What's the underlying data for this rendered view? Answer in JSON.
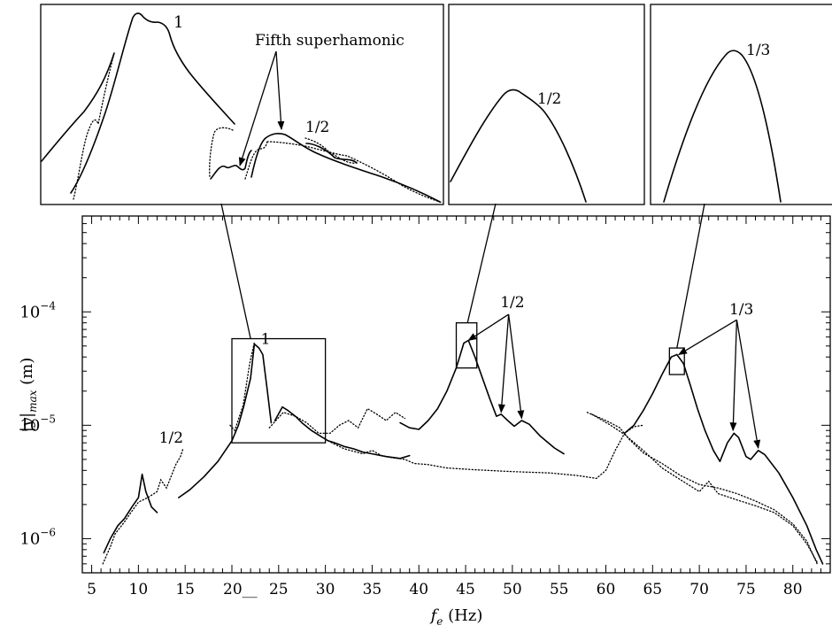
{
  "chart_data": {
    "type": "line",
    "title": "",
    "xlabel_main": "f",
    "xlabel_sub": "e",
    "xlabel_unit": " (Hz)",
    "ylabel_main": "|y|",
    "ylabel_sub": "max",
    "ylabel_unit": " (m)",
    "x_range": [
      4,
      84
    ],
    "y_scale": "log",
    "y_range": [
      5e-07,
      0.0007
    ],
    "x_ticks": [
      {
        "value": 5,
        "label": "5"
      },
      {
        "value": 10,
        "label": "10"
      },
      {
        "value": 15,
        "label": "15"
      },
      {
        "value": 20,
        "label": "20__"
      },
      {
        "value": 25,
        "label": "25"
      },
      {
        "value": 30,
        "label": "30"
      },
      {
        "value": 35,
        "label": "35"
      },
      {
        "value": 40,
        "label": "40"
      },
      {
        "value": 45,
        "label": "45"
      },
      {
        "value": 50,
        "label": "50"
      },
      {
        "value": 55,
        "label": "55"
      },
      {
        "value": 60,
        "label": "60"
      },
      {
        "value": 65,
        "label": "65"
      },
      {
        "value": 70,
        "label": "70"
      },
      {
        "value": 75,
        "label": "75"
      },
      {
        "value": 80,
        "label": "80"
      }
    ],
    "y_ticks": [
      {
        "value": 1e-06,
        "base": "10",
        "exp": "−6"
      },
      {
        "value": 1e-05,
        "base": "10",
        "exp": "−5"
      },
      {
        "value": 0.0001,
        "base": "10",
        "exp": "−4"
      }
    ],
    "series": [
      {
        "style": "solid",
        "segments": [
          [
            [
              6.3,
              7.5e-07
            ],
            [
              7.0,
              1e-06
            ],
            [
              7.8,
              1.3e-06
            ],
            [
              8.5,
              1.5e-06
            ],
            [
              9.3,
              1.9e-06
            ],
            [
              10.0,
              2.3e-06
            ],
            [
              10.4,
              3.7e-06
            ],
            [
              10.8,
              2.6e-06
            ],
            [
              11.4,
              1.9e-06
            ],
            [
              12.0,
              1.7e-06
            ]
          ],
          [
            [
              14.3,
              2.3e-06
            ],
            [
              15.5,
              2.7e-06
            ],
            [
              17.0,
              3.5e-06
            ],
            [
              18.5,
              4.8e-06
            ],
            [
              20.0,
              7.3e-06
            ],
            [
              20.7,
              1e-05
            ],
            [
              21.3,
              1.5e-05
            ],
            [
              22.0,
              2.6e-05
            ],
            [
              22.4,
              5.2e-05
            ],
            [
              22.9,
              4.8e-05
            ],
            [
              23.3,
              4.2e-05
            ],
            [
              23.8,
              2e-05
            ],
            [
              24.2,
              1.05e-05
            ]
          ],
          [
            [
              24.6,
              1.1e-05
            ],
            [
              25.4,
              1.45e-05
            ],
            [
              26.0,
              1.35e-05
            ],
            [
              26.8,
              1.2e-05
            ],
            [
              27.5,
              1.05e-05
            ],
            [
              28.5,
              9e-06
            ],
            [
              29.5,
              8e-06
            ],
            [
              30.3,
              7.3e-06
            ],
            [
              31.0,
              7e-06
            ],
            [
              32.0,
              6.5e-06
            ],
            [
              33.0,
              6.2e-06
            ],
            [
              34.0,
              5.8e-06
            ],
            [
              35.0,
              5.6e-06
            ],
            [
              36.5,
              5.3e-06
            ],
            [
              38.0,
              5.1e-06
            ],
            [
              39.0,
              5.4e-06
            ]
          ],
          [
            [
              38.0,
              1.05e-05
            ],
            [
              39.0,
              9.5e-06
            ],
            [
              40.0,
              9.2e-06
            ],
            [
              41.0,
              1.1e-05
            ],
            [
              42.0,
              1.4e-05
            ],
            [
              43.0,
              2e-05
            ],
            [
              44.0,
              3.2e-05
            ],
            [
              44.8,
              5.3e-05
            ],
            [
              45.3,
              5.6e-05
            ],
            [
              46.0,
              4e-05
            ],
            [
              46.8,
              2.6e-05
            ],
            [
              47.6,
              1.7e-05
            ],
            [
              48.3,
              1.2e-05
            ],
            [
              48.8,
              1.25e-05
            ],
            [
              49.5,
              1.1e-05
            ],
            [
              50.2,
              9.8e-06
            ],
            [
              51.0,
              1.1e-05
            ],
            [
              51.8,
              1.02e-05
            ],
            [
              53.0,
              8e-06
            ],
            [
              54.5,
              6.3e-06
            ],
            [
              55.5,
              5.6e-06
            ]
          ],
          [
            [
              62.0,
              8.5e-06
            ],
            [
              63.0,
              1e-05
            ],
            [
              64.0,
              1.35e-05
            ],
            [
              65.0,
              1.9e-05
            ],
            [
              66.0,
              2.8e-05
            ],
            [
              67.0,
              4e-05
            ],
            [
              67.6,
              4.2e-05
            ],
            [
              68.3,
              3.5e-05
            ],
            [
              69.0,
              2.3e-05
            ],
            [
              69.8,
              1.4e-05
            ],
            [
              70.6,
              9e-06
            ],
            [
              71.5,
              6e-06
            ],
            [
              72.2,
              4.8e-06
            ],
            [
              73.0,
              7e-06
            ],
            [
              73.7,
              8.5e-06
            ],
            [
              74.2,
              7.8e-06
            ],
            [
              75.0,
              5.3e-06
            ],
            [
              75.5,
              5e-06
            ],
            [
              76.3,
              6e-06
            ],
            [
              77.0,
              5.5e-06
            ],
            [
              78.5,
              3.8e-06
            ],
            [
              80.0,
              2.3e-06
            ],
            [
              81.5,
              1.3e-06
            ],
            [
              82.5,
              8e-07
            ],
            [
              83.2,
              6e-07
            ]
          ]
        ]
      },
      {
        "style": "dotted",
        "segments": [
          [
            [
              6.2,
              6e-07
            ],
            [
              7.0,
              8.5e-07
            ],
            [
              7.5,
              1.1e-06
            ],
            [
              8.5,
              1.4e-06
            ],
            [
              9.2,
              1.7e-06
            ],
            [
              10.0,
              2.1e-06
            ],
            [
              11.0,
              2.3e-06
            ],
            [
              12.0,
              2.6e-06
            ],
            [
              12.4,
              3.3e-06
            ],
            [
              13.0,
              2.8e-06
            ],
            [
              14.0,
              4.5e-06
            ],
            [
              14.5,
              5.3e-06
            ],
            [
              14.8,
              6.3e-06
            ]
          ],
          [
            [
              19.8,
              1e-05
            ],
            [
              20.3,
              9e-06
            ],
            [
              21.2,
              1.5e-05
            ],
            [
              21.9,
              3.5e-05
            ],
            [
              22.4,
              5.4e-05
            ]
          ],
          [
            [
              24.0,
              9.5e-06
            ],
            [
              25.5,
              1.3e-05
            ],
            [
              26.8,
              1.2e-05
            ],
            [
              28.0,
              1.05e-05
            ],
            [
              29.3,
              8.5e-06
            ],
            [
              30.5,
              8.5e-06
            ],
            [
              31.5,
              1e-05
            ],
            [
              32.5,
              1.1e-05
            ],
            [
              33.5,
              9.5e-06
            ],
            [
              34.5,
              1.4e-05
            ],
            [
              35.5,
              1.25e-05
            ],
            [
              36.5,
              1.1e-05
            ],
            [
              37.5,
              1.3e-05
            ],
            [
              38.5,
              1.15e-05
            ]
          ],
          [
            [
              30.0,
              7.5e-06
            ],
            [
              31.0,
              6.8e-06
            ],
            [
              32.0,
              6.2e-06
            ],
            [
              34.0,
              5.6e-06
            ],
            [
              35.0,
              6e-06
            ],
            [
              36.0,
              5.4e-06
            ],
            [
              37.0,
              5.2e-06
            ],
            [
              38.5,
              5e-06
            ],
            [
              39.5,
              4.6e-06
            ],
            [
              41.0,
              4.5e-06
            ],
            [
              43.0,
              4.2e-06
            ],
            [
              46.0,
              4.05e-06
            ],
            [
              50.0,
              3.9e-06
            ],
            [
              54.0,
              3.8e-06
            ],
            [
              57.0,
              3.6e-06
            ],
            [
              59.0,
              3.4e-06
            ],
            [
              60.0,
              4e-06
            ],
            [
              61.0,
              6e-06
            ],
            [
              62.0,
              8.5e-06
            ],
            [
              63.0,
              9.7e-06
            ],
            [
              64.0,
              1e-05
            ]
          ],
          [
            [
              58.0,
              1.3e-05
            ],
            [
              59.5,
              1.15e-05
            ],
            [
              60.5,
              1.05e-05
            ],
            [
              61.5,
              9.5e-06
            ],
            [
              62.5,
              7.5e-06
            ],
            [
              64.0,
              5.7e-06
            ],
            [
              66.0,
              4.6e-06
            ],
            [
              68.0,
              3.6e-06
            ],
            [
              70.0,
              3e-06
            ],
            [
              72.0,
              2.8e-06
            ],
            [
              74.0,
              2.5e-06
            ],
            [
              76.0,
              2.15e-06
            ],
            [
              78.0,
              1.8e-06
            ],
            [
              80.0,
              1.35e-06
            ],
            [
              81.5,
              9.5e-07
            ],
            [
              82.6,
              6e-07
            ]
          ],
          [
            [
              58.5,
              1.25e-05
            ],
            [
              60.5,
              1e-05
            ],
            [
              62.0,
              8.3e-06
            ],
            [
              64.0,
              6e-06
            ],
            [
              66.0,
              4.2e-06
            ],
            [
              68.0,
              3.3e-06
            ],
            [
              70.0,
              2.6e-06
            ],
            [
              71.0,
              3.2e-06
            ],
            [
              72.0,
              2.5e-06
            ],
            [
              74.0,
              2.2e-06
            ],
            [
              76.0,
              1.95e-06
            ],
            [
              78.0,
              1.7e-06
            ],
            [
              80.0,
              1.3e-06
            ],
            [
              81.5,
              9e-07
            ],
            [
              82.6,
              6.2e-07
            ]
          ]
        ]
      }
    ],
    "main_annotations": [
      {
        "text": "1/2",
        "x": 13.5,
        "y": 7e-06
      },
      {
        "text": "1",
        "x": 23.6,
        "y": 5.2e-05
      },
      {
        "text": "1/2",
        "x": 50.0,
        "y": 0.00011
      },
      {
        "text": "1/3",
        "x": 74.5,
        "y": 9.5e-05
      }
    ],
    "zoom_boxes": [
      {
        "x": [
          20.0,
          30.0
        ],
        "y": [
          7e-06,
          5.8e-05
        ]
      },
      {
        "x": [
          44.0,
          46.2
        ],
        "y": [
          3.2e-05,
          8e-05
        ]
      },
      {
        "x": [
          66.8,
          68.4
        ],
        "y": [
          2.8e-05,
          4.8e-05
        ]
      }
    ],
    "inset_annotations": [
      {
        "inset": 1,
        "text": "1"
      },
      {
        "inset": 1,
        "text": "Fifth superhamonic"
      },
      {
        "inset": 1,
        "text": "1/2"
      },
      {
        "inset": 2,
        "text": "1/2"
      },
      {
        "inset": 3,
        "text": "1/3"
      }
    ]
  }
}
